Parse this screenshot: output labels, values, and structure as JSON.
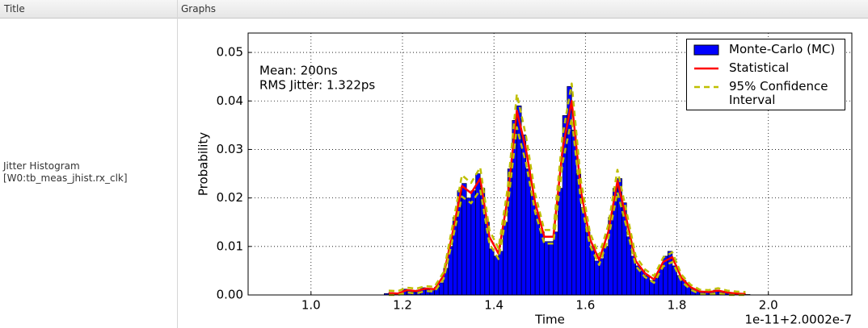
{
  "table": {
    "columns": [
      "Title",
      "Graphs"
    ],
    "rows": [
      {
        "title": [
          "Jitter Histogram",
          "[W0:tb_meas_jhist.rx_clk]"
        ]
      }
    ]
  },
  "chart_data": {
    "type": "histogram",
    "xlabel": "Time",
    "ylabel": "Probability",
    "x_offset_label": "1e-11+2.0002e-7",
    "annotations": [
      "Mean: 200ns",
      "RMS Jitter: 1.322ps"
    ],
    "xlim": [
      0.8625,
      2.1825
    ],
    "ylim": [
      0,
      0.054
    ],
    "xticks": [
      {
        "value": 1,
        "label": "1.0"
      },
      1.2,
      1.4,
      1.6,
      1.8,
      {
        "value": 2,
        "label": "2.0"
      }
    ],
    "yticks": [
      {
        "value": 0,
        "label": "0.00"
      },
      0.01,
      0.02,
      0.03,
      0.04,
      0.05
    ],
    "grid": true,
    "legend": "upper right",
    "histogram": {
      "name": "Monte-Carlo (MC)",
      "color": "#0000ff",
      "bins": [
        1.16,
        1.17,
        1.18,
        1.19,
        1.2,
        1.21,
        1.22,
        1.23,
        1.24,
        1.25,
        1.26,
        1.27,
        1.28,
        1.29,
        1.3,
        1.31,
        1.32,
        1.33,
        1.34,
        1.35,
        1.36,
        1.37,
        1.38,
        1.39,
        1.4,
        1.41,
        1.42,
        1.43,
        1.44,
        1.45,
        1.46,
        1.47,
        1.48,
        1.49,
        1.5,
        1.51,
        1.52,
        1.53,
        1.54,
        1.55,
        1.56,
        1.57,
        1.58,
        1.59,
        1.6,
        1.61,
        1.62,
        1.63,
        1.64,
        1.65,
        1.66,
        1.67,
        1.68,
        1.69,
        1.7,
        1.71,
        1.72,
        1.73,
        1.74,
        1.75,
        1.76,
        1.77,
        1.78,
        1.79,
        1.8,
        1.81,
        1.82,
        1.83,
        1.84,
        1.85,
        1.86,
        1.87,
        1.88,
        1.89,
        1.9,
        1.91,
        1.92,
        1.93,
        1.94,
        1.95,
        1.96
      ],
      "values": [
        0.0003,
        0.0005,
        0.0002,
        0.0003,
        0.0012,
        0.0009,
        0.0006,
        0.001,
        0.0015,
        0.0011,
        0.0009,
        0.0016,
        0.0025,
        0.0055,
        0.01,
        0.016,
        0.0215,
        0.023,
        0.02,
        0.0215,
        0.025,
        0.022,
        0.015,
        0.0095,
        0.008,
        0.009,
        0.015,
        0.026,
        0.036,
        0.039,
        0.033,
        0.026,
        0.021,
        0.017,
        0.013,
        0.011,
        0.011,
        0.013,
        0.022,
        0.037,
        0.043,
        0.034,
        0.025,
        0.018,
        0.013,
        0.01,
        0.007,
        0.0075,
        0.01,
        0.016,
        0.022,
        0.024,
        0.019,
        0.012,
        0.008,
        0.006,
        0.005,
        0.004,
        0.003,
        0.0035,
        0.0055,
        0.008,
        0.009,
        0.006,
        0.004,
        0.003,
        0.002,
        0.0012,
        0.0008,
        0.0006,
        0.0005,
        0.0007,
        0.001,
        0.0008,
        0.0005,
        0.0004,
        0.0003,
        0.0002,
        0.0002,
        0.0001
      ]
    },
    "x": [
      1.17,
      1.19,
      1.21,
      1.23,
      1.25,
      1.27,
      1.29,
      1.31,
      1.33,
      1.35,
      1.37,
      1.39,
      1.41,
      1.43,
      1.45,
      1.47,
      1.49,
      1.51,
      1.53,
      1.55,
      1.57,
      1.59,
      1.61,
      1.63,
      1.65,
      1.67,
      1.69,
      1.71,
      1.73,
      1.75,
      1.77,
      1.79,
      1.81,
      1.83,
      1.85,
      1.87,
      1.89,
      1.91,
      1.93,
      1.95
    ],
    "series": [
      {
        "name": "Statistical",
        "color": "#ff0000",
        "values": [
          0.0004,
          0.0003,
          0.001,
          0.0008,
          0.0013,
          0.0012,
          0.004,
          0.013,
          0.0225,
          0.021,
          0.024,
          0.012,
          0.0085,
          0.02,
          0.038,
          0.03,
          0.019,
          0.012,
          0.012,
          0.03,
          0.04,
          0.0215,
          0.0115,
          0.0072,
          0.013,
          0.0235,
          0.0155,
          0.007,
          0.0045,
          0.0032,
          0.0068,
          0.0078,
          0.0035,
          0.0016,
          0.0007,
          0.0006,
          0.0009,
          0.0005,
          0.0003,
          0.0002
        ]
      },
      {
        "name": "95% Confidence Interval",
        "color": "#bfbf00",
        "dashed": true,
        "upper": [
          0.0009,
          0.0008,
          0.0015,
          0.0013,
          0.0018,
          0.0017,
          0.0047,
          0.0145,
          0.0247,
          0.0231,
          0.0263,
          0.0134,
          0.0096,
          0.022,
          0.0414,
          0.0328,
          0.0209,
          0.0134,
          0.0134,
          0.0328,
          0.0436,
          0.0236,
          0.0128,
          0.0082,
          0.0144,
          0.0258,
          0.0171,
          0.008,
          0.0053,
          0.0039,
          0.0077,
          0.0088,
          0.0042,
          0.0021,
          0.0011,
          0.001,
          0.0014,
          0.0009,
          0.0007,
          0.0006
        ],
        "lower": [
          0,
          0,
          0.0005,
          0.0003,
          0.0008,
          0.0007,
          0.0033,
          0.0116,
          0.0203,
          0.0189,
          0.0217,
          0.0106,
          0.0074,
          0.018,
          0.0346,
          0.0272,
          0.0171,
          0.0106,
          0.0106,
          0.0272,
          0.0364,
          0.0194,
          0.0102,
          0.0062,
          0.0116,
          0.0212,
          0.0139,
          0.006,
          0.0037,
          0.0025,
          0.0059,
          0.0068,
          0.0028,
          0.0011,
          0.0002,
          0.0001,
          0.0004,
          0,
          0,
          0
        ]
      }
    ]
  }
}
